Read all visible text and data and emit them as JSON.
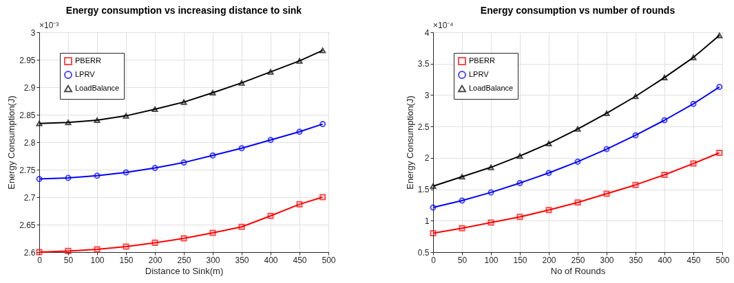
{
  "chart_data": [
    {
      "type": "line",
      "title": "Energy consumption vs increasing distance to sink",
      "xlabel": "Distance to Sink(m)",
      "ylabel": "Energy Consumption(J)",
      "annotations": [
        "×10⁻³"
      ],
      "x": [
        0,
        50,
        100,
        150,
        200,
        250,
        300,
        350,
        400,
        450,
        490
      ],
      "series": [
        {
          "name": "PBERR",
          "color": "#ff0000",
          "marker": "square",
          "values": [
            2.6,
            2.602,
            2.605,
            2.61,
            2.617,
            2.625,
            2.635,
            2.646,
            2.666,
            2.687,
            2.7
          ]
        },
        {
          "name": "LPRV",
          "color": "#0000ff",
          "marker": "circle",
          "values": [
            2.733,
            2.735,
            2.739,
            2.745,
            2.753,
            2.763,
            2.776,
            2.789,
            2.804,
            2.819,
            2.833
          ]
        },
        {
          "name": "LoadBalance",
          "color": "#000000",
          "marker": "triangle",
          "values": [
            2.834,
            2.836,
            2.84,
            2.848,
            2.86,
            2.873,
            2.89,
            2.908,
            2.928,
            2.948,
            2.967
          ]
        }
      ],
      "xlim": [
        0,
        500
      ],
      "xticks": [
        0,
        50,
        100,
        150,
        200,
        250,
        300,
        350,
        400,
        450,
        500
      ],
      "ylim": [
        2.6,
        3
      ],
      "yticks": [
        2.6,
        2.65,
        2.7,
        2.75,
        2.8,
        2.85,
        2.9,
        2.95,
        3
      ],
      "grid": true,
      "legend": "top left"
    },
    {
      "type": "line",
      "title": "Energy consumption vs number of rounds",
      "xlabel": "No of Rounds",
      "ylabel": "Energy Consumption(J)",
      "annotations": [
        "×10⁻⁴"
      ],
      "x": [
        0,
        50,
        100,
        150,
        200,
        250,
        300,
        350,
        400,
        450,
        495
      ],
      "series": [
        {
          "name": "PBERR",
          "color": "#ff0000",
          "marker": "square",
          "values": [
            0.8,
            0.88,
            0.97,
            1.06,
            1.17,
            1.29,
            1.43,
            1.57,
            1.73,
            1.91,
            2.08
          ]
        },
        {
          "name": "LPRV",
          "color": "#0000ff",
          "marker": "circle",
          "values": [
            1.21,
            1.32,
            1.45,
            1.6,
            1.76,
            1.94,
            2.14,
            2.36,
            2.6,
            2.86,
            3.13
          ]
        },
        {
          "name": "LoadBalance",
          "color": "#000000",
          "marker": "triangle",
          "values": [
            1.55,
            1.7,
            1.85,
            2.03,
            2.23,
            2.46,
            2.71,
            2.98,
            3.28,
            3.6,
            3.95
          ]
        }
      ],
      "xlim": [
        0,
        500
      ],
      "xticks": [
        0,
        50,
        100,
        150,
        200,
        250,
        300,
        350,
        400,
        450,
        500
      ],
      "ylim": [
        0.5,
        4
      ],
      "yticks": [
        0.5,
        1,
        1.5,
        2,
        2.5,
        3,
        3.5,
        4
      ],
      "grid": true,
      "legend": "top left"
    }
  ]
}
